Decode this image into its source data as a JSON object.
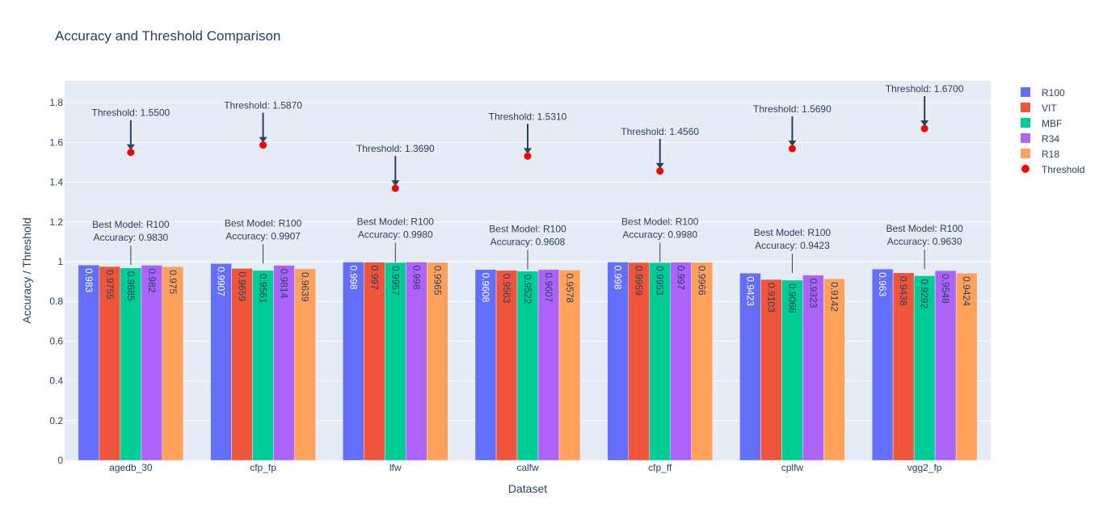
{
  "chart_data": {
    "type": "bar",
    "title": "Accuracy and Threshold Comparison",
    "xlabel": "Dataset",
    "ylabel": "Accuracy / Threshold",
    "ylim": [
      0,
      1.9
    ],
    "yticks": [
      0,
      0.2,
      0.4,
      0.6,
      0.8,
      1,
      1.2,
      1.4,
      1.6,
      1.8
    ],
    "ytick_labels": [
      "0",
      "0.2",
      "0.4",
      "0.6",
      "0.8",
      "1",
      "1.2",
      "1.4",
      "1.6",
      "1.8"
    ],
    "grid": true,
    "legend_position": "top-right",
    "categories": [
      "agedb_30",
      "cfp_fp",
      "lfw",
      "calfw",
      "cfp_ff",
      "cplfw",
      "vgg2_fp"
    ],
    "series": [
      {
        "name": "R100",
        "color": "#636efa",
        "text_color": "#ffffff",
        "values": [
          0.983,
          0.9907,
          0.998,
          0.9608,
          0.998,
          0.9423,
          0.963
        ],
        "labels": [
          "0.983",
          "0.9907",
          "0.998",
          "0.9608",
          "0.998",
          "0.9423",
          "0.963"
        ]
      },
      {
        "name": "VIT",
        "color": "#ef553b",
        "text_color": "#2a3f5f",
        "values": [
          0.9755,
          0.9659,
          0.997,
          0.9563,
          0.9959,
          0.9103,
          0.9438
        ],
        "labels": [
          "0.9755",
          "0.9659",
          "0.997",
          "0.9563",
          "0.9959",
          "0.9103",
          "0.9438"
        ]
      },
      {
        "name": "MBF",
        "color": "#00cc96",
        "text_color": "#2a3f5f",
        "values": [
          0.9685,
          0.9561,
          0.9957,
          0.9522,
          0.9953,
          0.9068,
          0.9292
        ],
        "labels": [
          "0.9685",
          "0.9561",
          "0.9957",
          "0.9522",
          "0.9953",
          "0.9068",
          "0.9292"
        ]
      },
      {
        "name": "R34",
        "color": "#ab63fa",
        "text_color": "#2a3f5f",
        "values": [
          0.982,
          0.9814,
          0.998,
          0.9607,
          0.997,
          0.9323,
          0.9548
        ],
        "labels": [
          "0.982",
          "0.9814",
          "0.998",
          "0.9607",
          "0.997",
          "0.9323",
          "0.9548"
        ]
      },
      {
        "name": "R18",
        "color": "#ffa15a",
        "text_color": "#2a3f5f",
        "values": [
          0.975,
          0.9639,
          0.9965,
          0.9578,
          0.9966,
          0.9142,
          0.9424
        ],
        "labels": [
          "0.975",
          "0.9639",
          "0.9965",
          "0.9578",
          "0.9966",
          "0.9142",
          "0.9424"
        ]
      }
    ],
    "threshold": {
      "name": "Threshold",
      "color": "#ff0000",
      "values": [
        1.55,
        1.587,
        1.369,
        1.531,
        1.456,
        1.569,
        1.67
      ]
    },
    "threshold_annotations": [
      "Threshold: 1.5500",
      "Threshold: 1.5870",
      "Threshold: 1.3690",
      "Threshold: 1.5310",
      "Threshold: 1.4560",
      "Threshold: 1.5690",
      "Threshold: 1.6700"
    ],
    "best_model_annotations": [
      {
        "line1": "Best Model: R100",
        "line2": "Accuracy: 0.9830"
      },
      {
        "line1": "Best Model: R100",
        "line2": "Accuracy: 0.9907"
      },
      {
        "line1": "Best Model: R100",
        "line2": "Accuracy: 0.9980"
      },
      {
        "line1": "Best Model: R100",
        "line2": "Accuracy: 0.9608"
      },
      {
        "line1": "Best Model: R100",
        "line2": "Accuracy: 0.9980"
      },
      {
        "line1": "Best Model: R100",
        "line2": "Accuracy: 0.9423"
      },
      {
        "line1": "Best Model: R100",
        "line2": "Accuracy: 0.9630"
      }
    ]
  }
}
